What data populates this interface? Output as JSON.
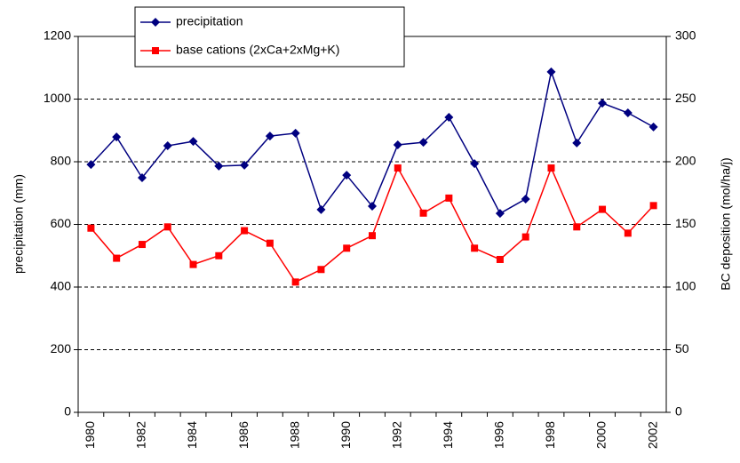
{
  "chart_data": {
    "type": "line",
    "categories": [
      "1980",
      null,
      "1982",
      null,
      "1984",
      null,
      "1986",
      null,
      "1988",
      null,
      "1990",
      null,
      "1992",
      null,
      "1994",
      null,
      "1996",
      null,
      "1998",
      null,
      "2000",
      null,
      "2002"
    ],
    "series": [
      {
        "name": "precipitation",
        "color": "#000080",
        "marker": "diamond",
        "values": [
          791,
          879,
          749,
          851,
          865,
          786,
          789,
          882,
          891,
          647,
          757,
          658,
          854,
          862,
          942,
          794,
          635,
          681,
          1087,
          860,
          987,
          956,
          911
        ]
      },
      {
        "name": "base cations (2xCa+2xMg+K)",
        "color": "#ff0000",
        "marker": "square",
        "axis": "y2",
        "values": [
          147,
          123,
          134,
          148,
          118,
          125,
          145,
          135,
          104,
          114,
          131,
          141,
          195,
          159,
          171,
          131,
          122,
          140,
          195,
          148,
          162,
          143,
          165
        ]
      }
    ],
    "ylabel": "precipitation (mm)",
    "y2label": "BC deposition (mol/ha/j)",
    "ylim": [
      0,
      1200
    ],
    "yticks": [
      0,
      200,
      400,
      600,
      800,
      1000,
      1200
    ],
    "y2lim": [
      0,
      300
    ],
    "y2ticks": [
      0,
      50,
      100,
      150,
      200,
      250,
      300
    ],
    "grid": true,
    "legend": "top-left"
  }
}
